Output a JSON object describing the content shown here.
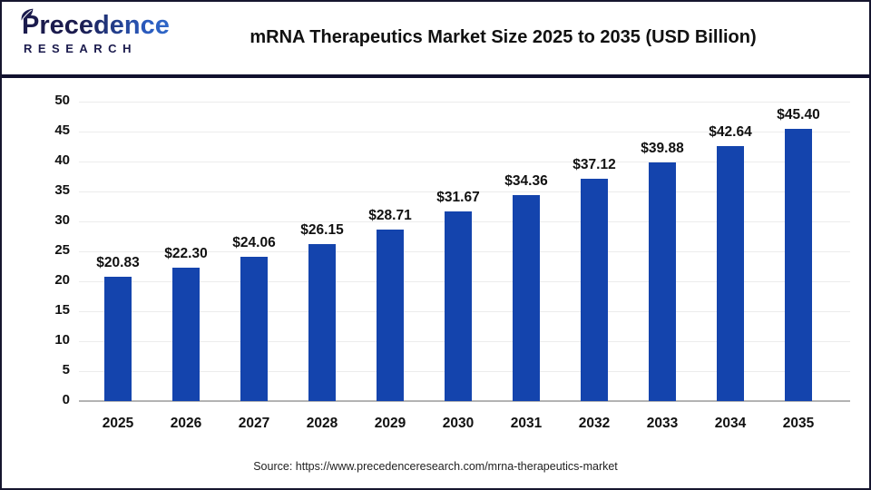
{
  "header": {
    "logo_line1": "Precedence",
    "logo_line2": "RESEARCH",
    "title": "mRNA Therapeutics Market Size 2025 to 2035 (USD Billion)"
  },
  "chart_data": {
    "type": "bar",
    "title": "mRNA Therapeutics Market Size 2025 to 2035 (USD Billion)",
    "categories": [
      "2025",
      "2026",
      "2027",
      "2028",
      "2029",
      "2030",
      "2031",
      "2032",
      "2033",
      "2034",
      "2035"
    ],
    "values": [
      20.83,
      22.3,
      24.06,
      26.15,
      28.71,
      31.67,
      34.36,
      37.12,
      39.88,
      42.64,
      45.4
    ],
    "value_labels": [
      "$20.83",
      "$22.30",
      "$24.06",
      "$26.15",
      "$28.71",
      "$31.67",
      "$34.36",
      "$37.12",
      "$39.88",
      "$42.64",
      "$45.40"
    ],
    "xlabel": "",
    "ylabel": "",
    "ylim": [
      0,
      50
    ],
    "ytick_step": 5,
    "grid": "horizontal",
    "legend": "none",
    "bar_color": "#1444AD"
  },
  "footer": {
    "source": "Source: https://www.precedenceresearch.com/mrna-therapeutics-market"
  },
  "colors": {
    "bar": "#1444AD",
    "separator": "#10102e",
    "gridline": "#ececec",
    "axis": "#b3b3b3",
    "text": "#111111",
    "logo_navy": "#1b1b4d",
    "logo_blue": "#2e6ed2"
  }
}
